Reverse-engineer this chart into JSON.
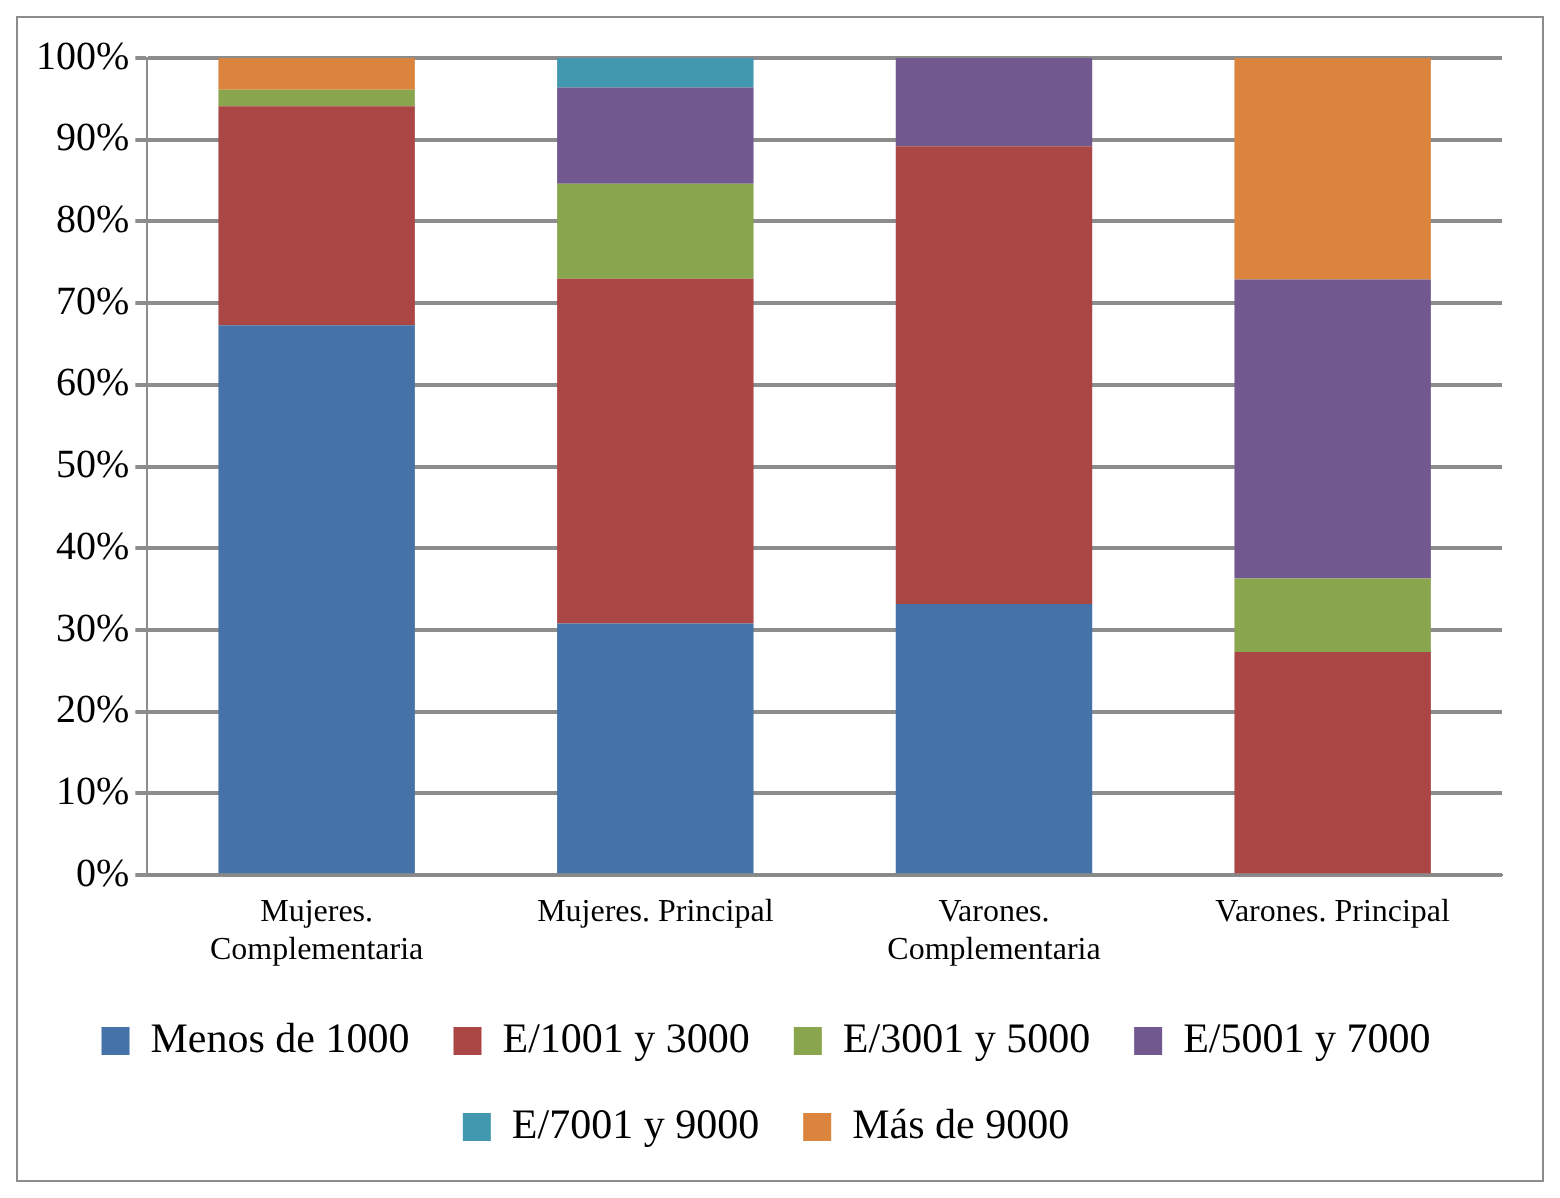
{
  "chart_data": {
    "type": "bar",
    "stacked": true,
    "categories": [
      "Mujeres. Complementaria",
      "Mujeres. Principal",
      "Varones. Complementaria",
      "Varones. Principal"
    ],
    "series": [
      {
        "name": "Menos de 1000",
        "color": "#4572a7",
        "values": [
          67.3,
          30.8,
          33.2,
          0
        ]
      },
      {
        "name": "E/1001 y 3000",
        "color": "#aa4643",
        "values": [
          26.8,
          42.2,
          56,
          27.3
        ]
      },
      {
        "name": "E/3001 y 5000",
        "color": "#89a54e",
        "values": [
          2,
          11.6,
          0,
          9
        ]
      },
      {
        "name": "E/5001 y 7000",
        "color": "#71588f",
        "values": [
          0,
          11.8,
          10.8,
          36.6
        ]
      },
      {
        "name": "E/7001 y 9000",
        "color": "#4198af",
        "values": [
          0,
          3.6,
          0,
          0
        ]
      },
      {
        "name": "Más de 9000",
        "color": "#db843d",
        "values": [
          3.9,
          0,
          0,
          27.1
        ]
      }
    ],
    "ylim": [
      0,
      100
    ],
    "yticks": [
      {
        "value": 0,
        "label": "0%"
      },
      {
        "value": 10,
        "label": "10%"
      },
      {
        "value": 20,
        "label": "20%"
      },
      {
        "value": 30,
        "label": "30%"
      },
      {
        "value": 40,
        "label": "40%"
      },
      {
        "value": 50,
        "label": "50%"
      },
      {
        "value": 60,
        "label": "60%"
      },
      {
        "value": 70,
        "label": "70%"
      },
      {
        "value": 80,
        "label": "80%"
      },
      {
        "value": 90,
        "label": "90%"
      },
      {
        "value": 100,
        "label": "100%"
      }
    ],
    "grid": "y",
    "legend": "bottom"
  }
}
